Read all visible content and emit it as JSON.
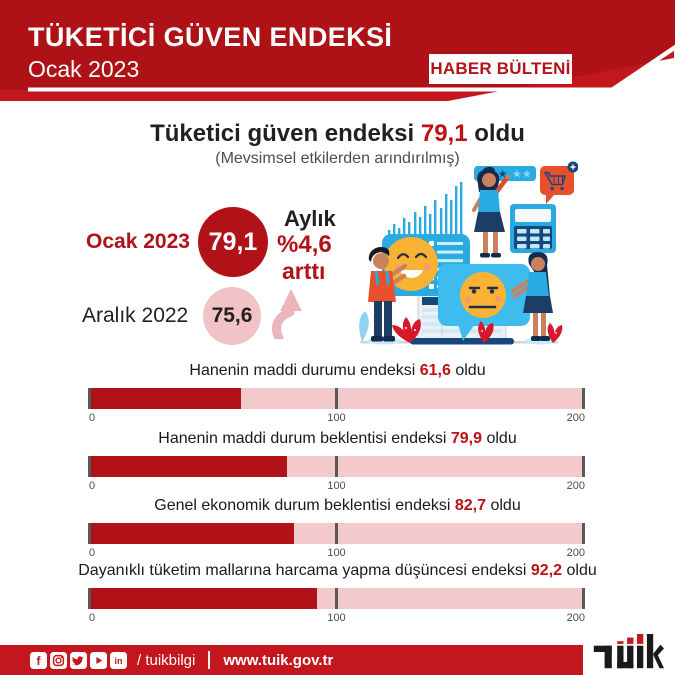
{
  "header": {
    "title": "TÜKETİCİ GÜVEN ENDEKSİ",
    "date": "Ocak 2023",
    "badge": "HABER BÜLTENİ"
  },
  "headline": {
    "prefix": "Tüketici güven endeksi ",
    "value": "79,1",
    "suffix": " oldu",
    "note": "(Mevsimsel etkilerden arındırılmış)"
  },
  "comparison": {
    "current_label": "Ocak 2023",
    "current_value": "79,1",
    "previous_label": "Aralık 2022",
    "previous_value": "75,6",
    "change_word": "Aylık",
    "change_value": "%4,6",
    "change_verb": "arttı"
  },
  "bars": [
    {
      "prefix": "Hanenin maddi durumu endeksi ",
      "value": "61,6",
      "suffix": " oldu"
    },
    {
      "prefix": "Hanenin maddi durum beklentisi endeksi ",
      "value": "79,9",
      "suffix": " oldu"
    },
    {
      "prefix": "Genel ekonomik durum beklentisi endeksi ",
      "value": "82,7",
      "suffix": " oldu"
    },
    {
      "prefix": "Dayanıklı tüketim mallarına harcama yapma düşüncesi endeksi ",
      "value": "92,2",
      "suffix": " oldu"
    }
  ],
  "axis": {
    "labels": [
      "0",
      "100",
      "200"
    ]
  },
  "footer": {
    "handle": "/ tuikbilgi",
    "website": "www.tuik.gov.tr",
    "logo": "TÜİK",
    "icons": [
      "facebook-icon",
      "instagram-icon",
      "twitter-icon",
      "youtube-icon",
      "linkedin-icon"
    ]
  },
  "colors": {
    "header_red": "#AE1217",
    "accent_red": "#C3161D",
    "bar_red": "#B01217",
    "number_red": "#BE1015",
    "track_pink": "#F3C9CC",
    "circle_pink": "#F1C3C7",
    "arrow_pink": "#EAB6BB",
    "illustration_blue": "#29ABE2",
    "illustration_navy": "#16477D",
    "illustration_orange": "#E8502B",
    "emoji_yellow": "#F9B234"
  },
  "chart_data": {
    "type": "bar",
    "orientation": "horizontal",
    "title": "Tüketici güven endeksi 79,1 oldu",
    "subtitle": "(Mevsimsel etkilerden arındırılmış)",
    "categories": [
      "Hanenin maddi durumu endeksi",
      "Hanenin maddi durum beklentisi endeksi",
      "Genel ekonomik durum beklentisi endeksi",
      "Dayanıklı tüketim mallarına harcama yapma düşüncesi endeksi"
    ],
    "values": [
      61.6,
      79.9,
      82.7,
      92.2
    ],
    "xlim": [
      0,
      200
    ],
    "ticks": [
      0,
      100,
      200
    ],
    "comparison": {
      "Ocak 2023": 79.1,
      "Aralık 2022": 75.6,
      "monthly_change_percent": 4.6,
      "direction": "arttı"
    }
  }
}
